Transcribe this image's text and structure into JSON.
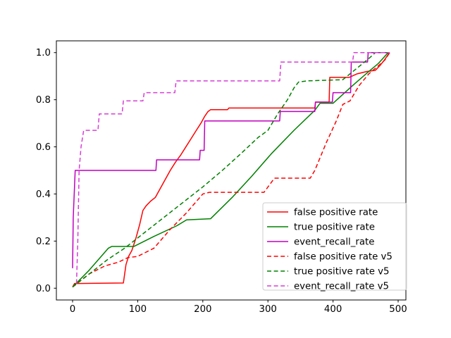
{
  "figure": {
    "background": "#ffffff",
    "title": ""
  },
  "chart_data": {
    "type": "line",
    "title": "",
    "xlabel": "",
    "ylabel": "",
    "xlim": [
      -24.9,
      511.9
    ],
    "ylim": [
      -0.05,
      1.05
    ],
    "grid": false,
    "x_ticks": {
      "values": [
        0,
        100,
        200,
        300,
        400,
        500
      ],
      "labels": [
        "0",
        "100",
        "200",
        "300",
        "400",
        "500"
      ]
    },
    "y_ticks": {
      "values": [
        0.0,
        0.2,
        0.4,
        0.6,
        0.8,
        1.0
      ],
      "labels": [
        "0.0",
        "0.2",
        "0.4",
        "0.6",
        "0.8",
        "1.0"
      ]
    },
    "legend": {
      "position": "lower right",
      "border_color": "#cccccc",
      "background": "#ffffff",
      "entries": [
        "false positive rate",
        "true positive rate",
        "event_recall_rate",
        "false positive rate v5",
        "true positive rate v5",
        "event_recall_rate v5"
      ]
    },
    "series": [
      {
        "name": "false positive rate",
        "color": "#ff0000",
        "linestyle": "solid",
        "x": [
          0,
          3,
          8,
          78,
          82,
          86,
          91,
          97,
          103,
          108,
          113,
          120,
          127,
          134,
          142,
          150,
          158,
          166,
          174,
          182,
          190,
          197,
          203,
          208,
          212,
          238,
          240,
          318,
          372,
          373,
          394,
          395,
          425,
          437,
          452,
          465,
          472,
          478,
          483,
          487
        ],
        "y": [
          0.005,
          0.02,
          0.02,
          0.022,
          0.1,
          0.135,
          0.16,
          0.21,
          0.27,
          0.33,
          0.35,
          0.37,
          0.385,
          0.42,
          0.46,
          0.5,
          0.535,
          0.565,
          0.6,
          0.635,
          0.67,
          0.7,
          0.73,
          0.75,
          0.758,
          0.758,
          0.765,
          0.765,
          0.765,
          0.79,
          0.79,
          0.895,
          0.895,
          0.91,
          0.92,
          0.925,
          0.945,
          0.965,
          0.985,
          1.0
        ]
      },
      {
        "name": "true positive rate",
        "color": "#008000",
        "linestyle": "solid",
        "x": [
          0,
          25,
          55,
          60,
          94,
          125,
          160,
          175,
          212,
          245,
          275,
          305,
          340,
          372,
          380,
          400,
          430,
          455,
          470,
          483,
          487
        ],
        "y": [
          0.005,
          0.075,
          0.17,
          0.177,
          0.177,
          0.22,
          0.265,
          0.29,
          0.295,
          0.385,
          0.475,
          0.57,
          0.67,
          0.755,
          0.785,
          0.785,
          0.86,
          0.92,
          0.955,
          0.995,
          1.0
        ]
      },
      {
        "name": "event_recall_rate",
        "color": "#bf00bf",
        "linestyle": "solid",
        "x": [
          0,
          1,
          4,
          128,
          129,
          195,
          196,
          202,
          203,
          318,
          319,
          372,
          373,
          399,
          400,
          427,
          428,
          453,
          454,
          487
        ],
        "y": [
          0.085,
          0.3,
          0.5,
          0.5,
          0.545,
          0.545,
          0.585,
          0.585,
          0.71,
          0.71,
          0.75,
          0.75,
          0.79,
          0.79,
          0.83,
          0.83,
          0.96,
          0.96,
          1.0,
          1.0
        ]
      },
      {
        "name": "false positive rate v5",
        "color": "#ff0000",
        "linestyle": "dashed",
        "x": [
          0,
          25,
          50,
          70,
          85,
          100,
          125,
          150,
          175,
          200,
          210,
          294,
          310,
          365,
          372,
          390,
          405,
          415,
          426,
          440,
          455,
          470,
          480,
          487
        ],
        "y": [
          0.005,
          0.06,
          0.095,
          0.11,
          0.13,
          0.135,
          0.17,
          0.25,
          0.32,
          0.4,
          0.407,
          0.407,
          0.467,
          0.467,
          0.5,
          0.62,
          0.71,
          0.78,
          0.795,
          0.86,
          0.91,
          0.945,
          0.97,
          1.0
        ]
      },
      {
        "name": "true positive rate v5",
        "color": "#008000",
        "linestyle": "dashed",
        "x": [
          0,
          30,
          53,
          80,
          110,
          140,
          170,
          200,
          230,
          260,
          285,
          300,
          315,
          330,
          340,
          347,
          360,
          415,
          435,
          455,
          465,
          487
        ],
        "y": [
          0.005,
          0.07,
          0.12,
          0.17,
          0.235,
          0.3,
          0.365,
          0.43,
          0.5,
          0.575,
          0.64,
          0.67,
          0.74,
          0.8,
          0.85,
          0.875,
          0.88,
          0.885,
          0.93,
          0.975,
          1.0,
          1.0
        ]
      },
      {
        "name": "event_recall_rate v5",
        "color": "#d63fd6",
        "linestyle": "dashed",
        "x": [
          6,
          8,
          10,
          13,
          17,
          39,
          41,
          76,
          78,
          108,
          110,
          157,
          159,
          318,
          320,
          430,
          432,
          487
        ],
        "y": [
          0.02,
          0.2,
          0.5,
          0.6,
          0.67,
          0.67,
          0.74,
          0.74,
          0.795,
          0.795,
          0.83,
          0.83,
          0.88,
          0.88,
          0.96,
          0.96,
          1.0,
          1.0
        ]
      }
    ]
  }
}
